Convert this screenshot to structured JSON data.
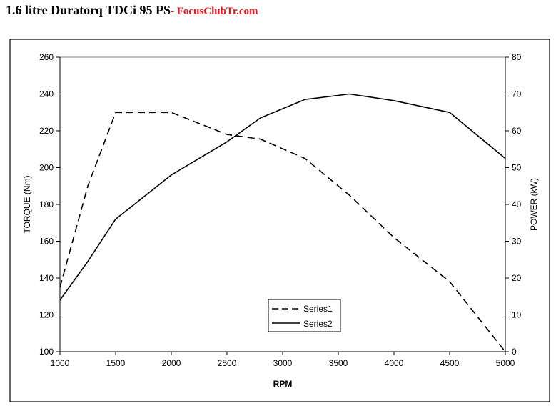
{
  "header": {
    "title": "1.6 litre Duratorq TDCi 95 PS",
    "brand": "- FocusClubTr.com",
    "brand_color": "#e8141c"
  },
  "chart_data": {
    "type": "line",
    "xlabel": "RPM",
    "ylabel": "TORQUE (Nm)",
    "y2label": "POWER (kW)",
    "xlim": [
      1000,
      5000
    ],
    "ylim": [
      100,
      260
    ],
    "y2lim": [
      0,
      80
    ],
    "xticks": [
      1000,
      1500,
      2000,
      2500,
      3000,
      3500,
      4000,
      4500,
      5000
    ],
    "yticks": [
      100,
      120,
      140,
      160,
      180,
      200,
      220,
      240,
      260
    ],
    "y2ticks": [
      0,
      10,
      20,
      30,
      40,
      50,
      60,
      70,
      80
    ],
    "grid": false,
    "legend_position": "bottom-center",
    "series": [
      {
        "name": "Series1",
        "axis": "left",
        "style": "dashed",
        "x": [
          1000,
          1250,
          1500,
          2000,
          2500,
          2800,
          3200,
          3600,
          4000,
          4500,
          5000
        ],
        "y": [
          135,
          190,
          230,
          230,
          218,
          215.5,
          205,
          185,
          162,
          138,
          100
        ]
      },
      {
        "name": "Series2",
        "axis": "right",
        "style": "solid",
        "x": [
          1000,
          1250,
          1500,
          2000,
          2500,
          2800,
          3200,
          3600,
          4000,
          4500,
          5000
        ],
        "y": [
          14,
          24.5,
          36,
          48,
          57,
          63.5,
          68.5,
          70,
          68.2,
          65,
          52.5
        ]
      }
    ]
  }
}
